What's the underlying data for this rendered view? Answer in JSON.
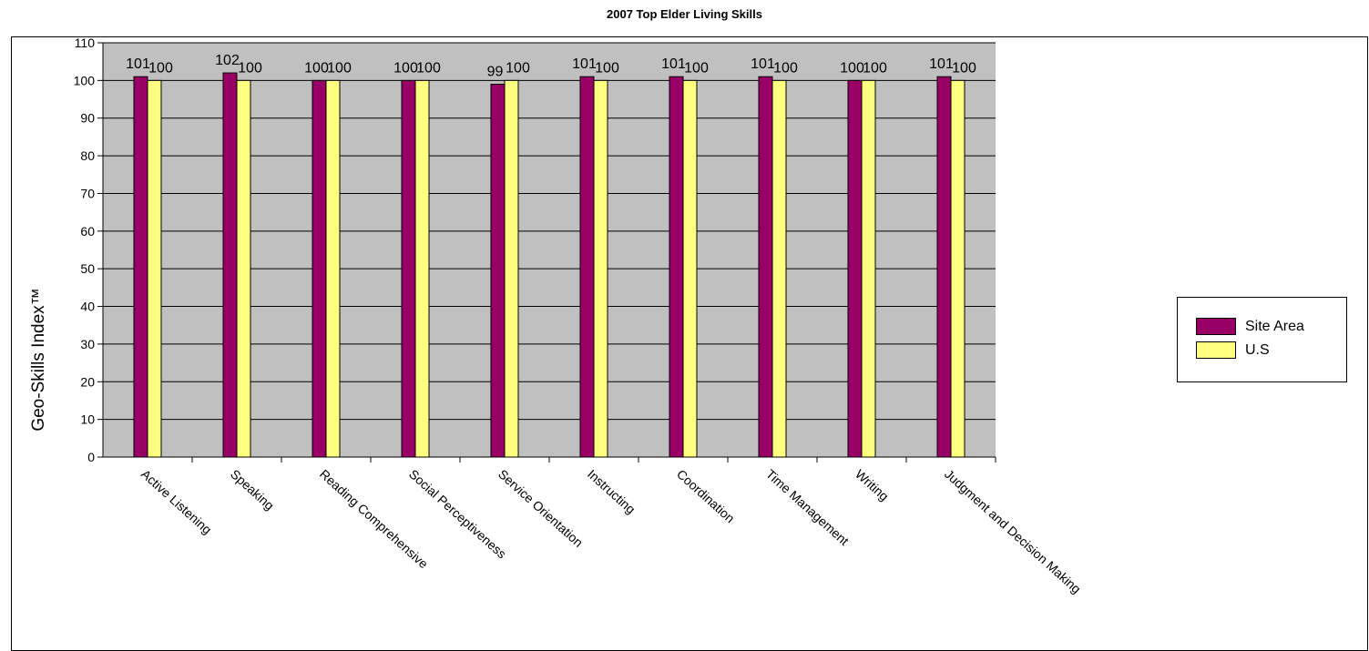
{
  "chart_data": {
    "type": "bar",
    "title": "2007 Top Elder Living Skills",
    "xlabel": "",
    "ylabel": "Geo-Skills Index™",
    "ylim": [
      0,
      110
    ],
    "yticks": [
      0,
      10,
      20,
      30,
      40,
      50,
      60,
      70,
      80,
      90,
      100,
      110
    ],
    "grid": true,
    "legend_position": "right",
    "categories": [
      "Active Listening",
      "Speaking",
      "Reading Comprehensive",
      "Social Perceptiveness",
      "Service Orientation",
      "Instructing",
      "Coordination",
      "Time Management",
      "Writing",
      "Judgment and Decision Making"
    ],
    "series": [
      {
        "name": "Site Area",
        "color": "#990066",
        "values": [
          101,
          102,
          100,
          100,
          99,
          101,
          101,
          101,
          100,
          101
        ]
      },
      {
        "name": "U.S",
        "color": "#FFFF80",
        "values": [
          100,
          100,
          100,
          100,
          100,
          100,
          100,
          100,
          100,
          100
        ]
      }
    ]
  }
}
